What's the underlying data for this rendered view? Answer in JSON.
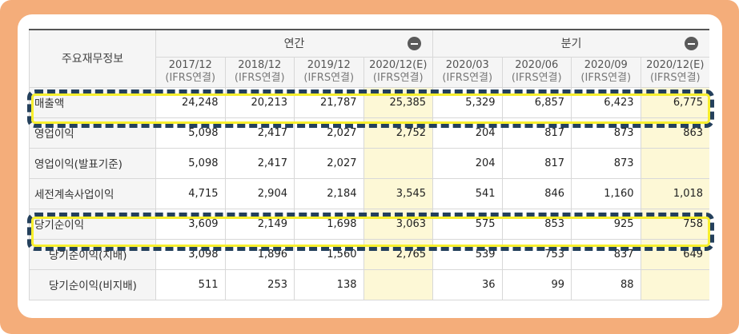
{
  "table": {
    "header": {
      "row_title": "주요재무정보",
      "annual_label": "연간",
      "quarter_label": "분기",
      "periods": [
        {
          "date": "2017/12",
          "basis": "(IFRS연결)",
          "estimate": false
        },
        {
          "date": "2018/12",
          "basis": "(IFRS연결)",
          "estimate": false
        },
        {
          "date": "2019/12",
          "basis": "(IFRS연결)",
          "estimate": false
        },
        {
          "date": "2020/12(E)",
          "basis": "(IFRS연결)",
          "estimate": true
        },
        {
          "date": "2020/03",
          "basis": "(IFRS연결)",
          "estimate": false
        },
        {
          "date": "2020/06",
          "basis": "(IFRS연결)",
          "estimate": false
        },
        {
          "date": "2020/09",
          "basis": "(IFRS연결)",
          "estimate": false
        },
        {
          "date": "2020/12(E)",
          "basis": "(IFRS연결)",
          "estimate": true
        }
      ]
    },
    "rows": [
      {
        "label": "매출액",
        "indent": false,
        "values": [
          "24,248",
          "20,213",
          "21,787",
          "25,385",
          "5,329",
          "6,857",
          "6,423",
          "6,775"
        ]
      },
      {
        "label": "영업이익",
        "indent": false,
        "values": [
          "5,098",
          "2,417",
          "2,027",
          "2,752",
          "204",
          "817",
          "873",
          "863"
        ]
      },
      {
        "label": "영업이익(발표기준)",
        "indent": false,
        "values": [
          "5,098",
          "2,417",
          "2,027",
          "",
          "204",
          "817",
          "873",
          ""
        ]
      },
      {
        "label": "세전계속사업이익",
        "indent": false,
        "values": [
          "4,715",
          "2,904",
          "2,184",
          "3,545",
          "541",
          "846",
          "1,160",
          "1,018"
        ]
      },
      {
        "label": "당기순이익",
        "indent": false,
        "values": [
          "3,609",
          "2,149",
          "1,698",
          "3,063",
          "575",
          "853",
          "925",
          "758"
        ]
      },
      {
        "label": "당기순이익(지배)",
        "indent": true,
        "values": [
          "3,098",
          "1,896",
          "1,560",
          "2,765",
          "539",
          "753",
          "837",
          "649"
        ]
      },
      {
        "label": "당기순이익(비지배)",
        "indent": true,
        "values": [
          "511",
          "253",
          "138",
          "",
          "36",
          "99",
          "88",
          ""
        ]
      }
    ]
  },
  "colors": {
    "frame": "#f4ad7a",
    "highlight_dash": "#24405c",
    "highlight_glow": "#f7ef2e",
    "estimate_cell": "#fdf8d6"
  },
  "icons": {
    "annual_toggle": "minus-circle-icon",
    "quarter_toggle": "minus-circle-icon"
  }
}
